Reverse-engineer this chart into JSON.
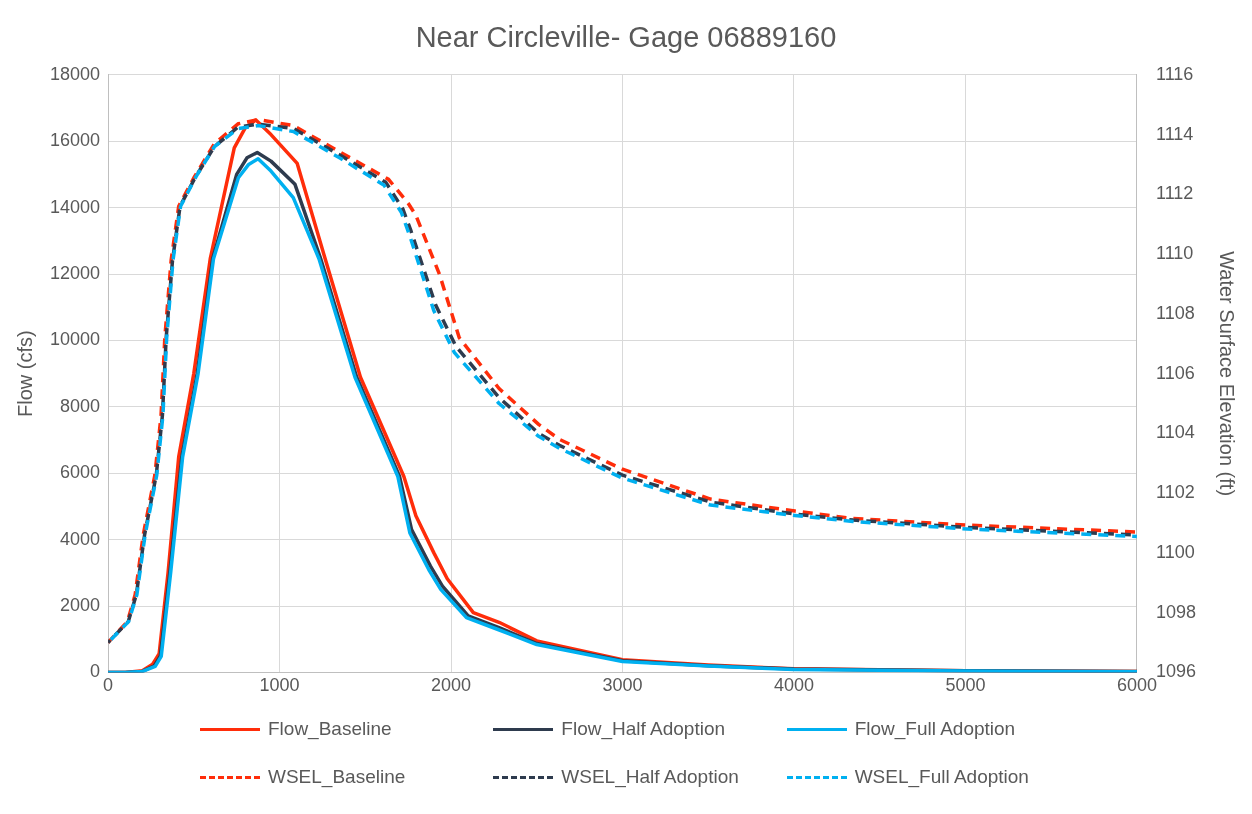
{
  "chart_data": {
    "type": "line",
    "title": "Near Circleville- Gage 06889160",
    "ylabel": "Flow (cfs)",
    "y2label": "Water Surface Elevation (ft)",
    "xlim": [
      0,
      6000
    ],
    "xticks": [
      0,
      1000,
      2000,
      3000,
      4000,
      5000,
      6000
    ],
    "ylim": [
      0,
      18000
    ],
    "yticks": [
      0,
      2000,
      4000,
      6000,
      8000,
      10000,
      12000,
      14000,
      16000,
      18000
    ],
    "y2lim": [
      1096,
      1116
    ],
    "y2ticks": [
      1096,
      1098,
      1100,
      1102,
      1104,
      1106,
      1108,
      1110,
      1112,
      1114,
      1116
    ],
    "grid": true,
    "legend": "bottom",
    "marker": "none",
    "series": [
      {
        "name": "Flow_Baseline",
        "color": "#ff2d0a",
        "line_style": "solid",
        "x": [
          0,
          100,
          200,
          260,
          298,
          350,
          412,
          500,
          596,
          736,
          800,
          862,
          950,
          1103,
          1266,
          1472,
          1725,
          1795,
          1900,
          1978,
          2130,
          2280,
          2500,
          3000,
          3500,
          4000,
          5000,
          6000
        ],
        "values": [
          0,
          0,
          50,
          250,
          560,
          3000,
          6490,
          9000,
          12460,
          15800,
          16400,
          16640,
          16200,
          15330,
          12460,
          8890,
          5900,
          4720,
          3600,
          2820,
          1800,
          1510,
          950,
          380,
          220,
          110,
          50,
          30
        ]
      },
      {
        "name": "Flow_Half Adoption",
        "color": "#2e3b4e",
        "line_style": "solid",
        "x": [
          0,
          100,
          200,
          270,
          305,
          360,
          430,
          520,
          610,
          750,
          810,
          870,
          950,
          1090,
          1240,
          1450,
          1700,
          1770,
          1880,
          1950,
          2100,
          2280,
          2500,
          3000,
          3500,
          4000,
          5000,
          6000
        ],
        "values": [
          0,
          0,
          30,
          200,
          500,
          3000,
          6490,
          9000,
          12460,
          15000,
          15500,
          15660,
          15400,
          14700,
          12460,
          8890,
          5900,
          4300,
          3200,
          2600,
          1700,
          1350,
          870,
          350,
          200,
          100,
          50,
          30
        ]
      },
      {
        "name": "Flow_Full Adoption",
        "color": "#00b0f0",
        "line_style": "solid",
        "x": [
          0,
          100,
          200,
          275,
          310,
          365,
          435,
          525,
          615,
          760,
          820,
          875,
          950,
          1080,
          1230,
          1440,
          1690,
          1760,
          1870,
          1940,
          2090,
          2270,
          2500,
          3000,
          3500,
          4000,
          5000,
          6000
        ],
        "values": [
          0,
          0,
          30,
          180,
          480,
          3000,
          6490,
          9000,
          12460,
          14900,
          15300,
          15470,
          15100,
          14300,
          12460,
          8890,
          5900,
          4200,
          3100,
          2500,
          1650,
          1300,
          840,
          330,
          190,
          90,
          40,
          20
        ]
      },
      {
        "name": "WSEL_Baseline",
        "color": "#ff2d0a",
        "line_style": "dashed",
        "axis": "y2",
        "x": [
          0,
          113,
          158,
          205,
          273,
          309,
          331,
          368,
          412,
          505,
          621,
          758,
          875,
          1081,
          1357,
          1636,
          1750,
          1795,
          1934,
          2048,
          2280,
          2511,
          2632,
          3000,
          3513,
          4005,
          4344,
          5010,
          6000
        ],
        "values": [
          1097.0,
          1097.7,
          1098.6,
          1100.6,
          1102.6,
          1104.6,
          1107.2,
          1109.8,
          1111.6,
          1112.6,
          1113.7,
          1114.36,
          1114.5,
          1114.3,
          1113.4,
          1112.5,
          1111.7,
          1111.3,
          1109.3,
          1107.2,
          1105.5,
          1104.3,
          1103.8,
          1102.8,
          1101.8,
          1101.4,
          1101.15,
          1100.93,
          1100.7
        ]
      },
      {
        "name": "WSEL_Half Adoption",
        "color": "#2e3b4e",
        "line_style": "dashed",
        "axis": "y2",
        "x": [
          0,
          118,
          165,
          213,
          281,
          317,
          339,
          376,
          420,
          512,
          621,
          758,
          875,
          1081,
          1357,
          1620,
          1720,
          1765,
          1910,
          2030,
          2280,
          2511,
          2632,
          3000,
          3513,
          4005,
          4344,
          5010,
          6000
        ],
        "values": [
          1097.0,
          1097.7,
          1098.6,
          1100.6,
          1102.6,
          1104.6,
          1107.2,
          1109.8,
          1111.6,
          1112.6,
          1113.6,
          1114.25,
          1114.35,
          1114.2,
          1113.3,
          1112.4,
          1111.5,
          1110.8,
          1108.3,
          1106.9,
          1105.2,
          1104.0,
          1103.6,
          1102.6,
          1101.7,
          1101.3,
          1101.1,
          1100.85,
          1100.6
        ]
      },
      {
        "name": "WSEL_Full Adoption",
        "color": "#00b0f0",
        "line_style": "dashed",
        "axis": "y2",
        "x": [
          0,
          120,
          168,
          216,
          284,
          320,
          342,
          379,
          423,
          514,
          621,
          758,
          875,
          1081,
          1357,
          1610,
          1710,
          1760,
          1900,
          2020,
          2280,
          2511,
          2632,
          3000,
          3513,
          4005,
          4344,
          5010,
          6000
        ],
        "values": [
          1097.0,
          1097.7,
          1098.6,
          1100.6,
          1102.6,
          1104.6,
          1107.2,
          1109.8,
          1111.6,
          1112.6,
          1113.6,
          1114.2,
          1114.3,
          1114.1,
          1113.2,
          1112.3,
          1111.4,
          1110.6,
          1108.1,
          1106.7,
          1105.0,
          1103.9,
          1103.5,
          1102.5,
          1101.6,
          1101.25,
          1101.05,
          1100.8,
          1100.55
        ]
      }
    ]
  }
}
